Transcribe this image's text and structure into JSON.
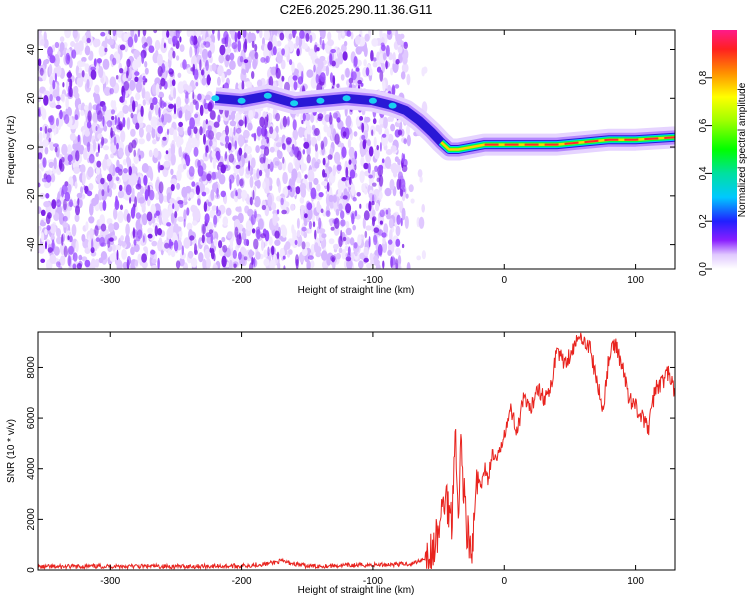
{
  "title": "C2E6.2025.290.11.36.G11",
  "chart_data": [
    {
      "type": "heatmap",
      "name": "spectrogram",
      "xlabel": "Height of straight line (km)",
      "ylabel": "Frequency (Hz)",
      "xlim": [
        -355,
        130
      ],
      "ylim": [
        -50,
        48
      ],
      "xticks": [
        -300,
        -200,
        -100,
        0,
        100
      ],
      "xtick_labels": [
        "-300",
        "-200",
        "-100",
        "0",
        "100"
      ],
      "yticks": [
        -40,
        -20,
        0,
        20,
        40
      ],
      "ytick_labels": [
        "-40",
        "-20",
        "0",
        "20",
        "40"
      ],
      "noise_region_x": [
        -355,
        -75
      ],
      "ridge": {
        "x": [
          -220,
          -200,
          -180,
          -160,
          -140,
          -120,
          -100,
          -85,
          -75,
          -65,
          -55,
          -48,
          -42,
          -35,
          -25,
          -15,
          0,
          20,
          40,
          60,
          80,
          100,
          130
        ],
        "y": [
          20,
          19,
          21,
          18,
          19,
          20,
          19,
          17,
          15,
          11,
          6,
          2,
          -1,
          -1,
          0,
          1,
          1,
          1,
          1,
          2,
          3,
          3,
          4
        ]
      },
      "colorbar": {
        "label": "Normalized spectral amplitude",
        "range": [
          0,
          1
        ],
        "ticks": [
          0.0,
          0.2,
          0.4,
          0.6,
          0.8
        ],
        "tick_labels": [
          "0.0",
          "0.2",
          "0.4",
          "0.6",
          "0.8"
        ]
      }
    },
    {
      "type": "line",
      "name": "snr",
      "xlabel": "Height of straight line (km)",
      "ylabel": "SNR (10 * v/v)",
      "xlim": [
        -355,
        130
      ],
      "ylim": [
        0,
        9400
      ],
      "xticks": [
        -300,
        -200,
        -100,
        0,
        100
      ],
      "xtick_labels": [
        "-300",
        "-200",
        "-100",
        "0",
        "100"
      ],
      "yticks": [
        0,
        2000,
        4000,
        6000,
        8000
      ],
      "ytick_labels": [
        "0",
        "2000",
        "4000",
        "6000",
        "8000"
      ],
      "color": "#e8231e",
      "series": [
        {
          "name": "SNR",
          "x": [
            -355,
            -300,
            -250,
            -200,
            -180,
            -170,
            -150,
            -100,
            -70,
            -55,
            -50,
            -45,
            -40,
            -37,
            -35,
            -33,
            -30,
            -28,
            -25,
            -22,
            -20,
            -18,
            -15,
            -12,
            -10,
            -5,
            0,
            5,
            10,
            15,
            20,
            25,
            30,
            35,
            40,
            45,
            50,
            55,
            60,
            65,
            70,
            75,
            80,
            85,
            90,
            95,
            100,
            105,
            110,
            115,
            120,
            125,
            130
          ],
          "y": [
            120,
            150,
            140,
            160,
            250,
            350,
            150,
            200,
            250,
            600,
            1500,
            3000,
            2000,
            6000,
            1500,
            5200,
            2500,
            1500,
            300,
            2500,
            3800,
            3000,
            4200,
            3500,
            4500,
            4300,
            5500,
            6300,
            5500,
            6800,
            6200,
            7300,
            6800,
            7000,
            8800,
            8200,
            8500,
            9000,
            9200,
            8800,
            7600,
            6300,
            8500,
            8900,
            8000,
            6800,
            6500,
            6000,
            5600,
            7200,
            7400,
            7800,
            7000
          ]
        }
      ]
    }
  ]
}
